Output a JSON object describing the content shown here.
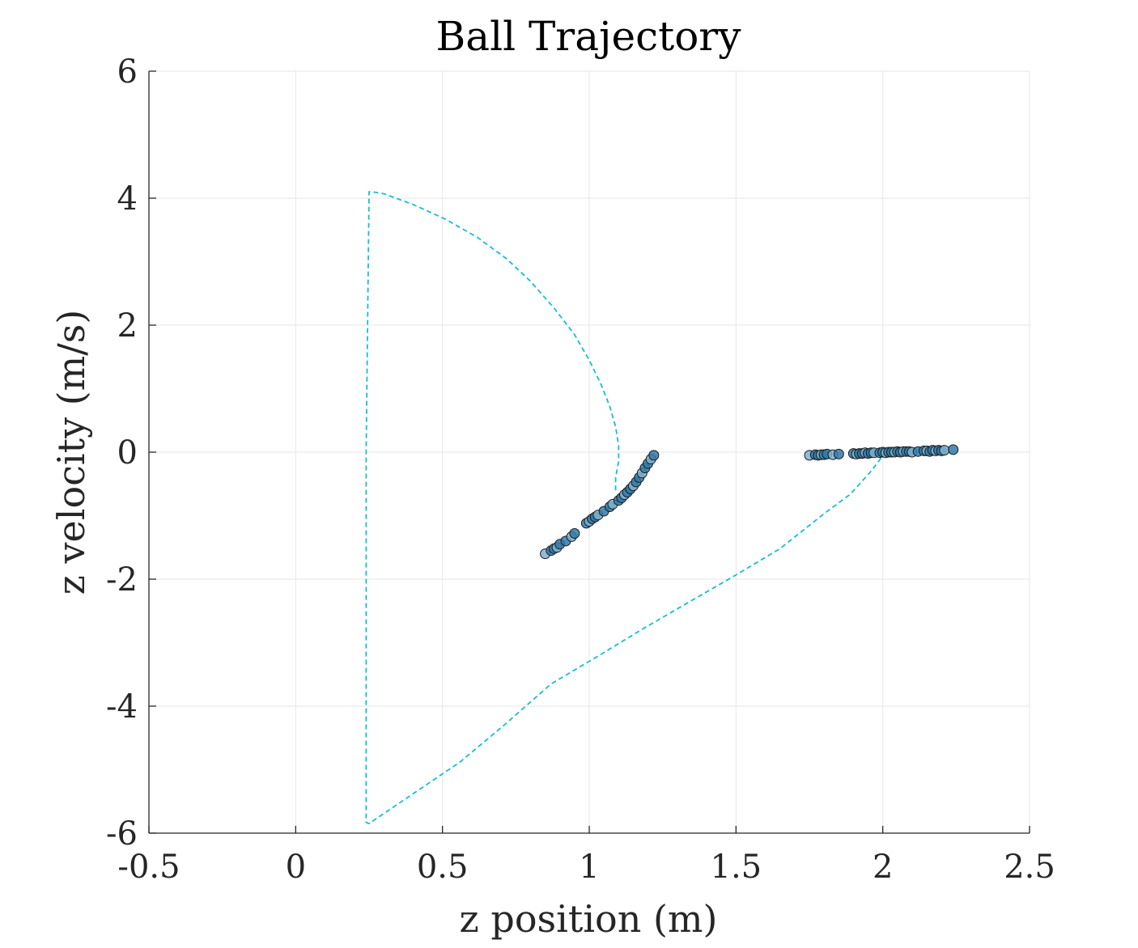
{
  "chart_data": {
    "type": "scatter",
    "title": "Ball Trajectory",
    "xlabel": "z position (m)",
    "ylabel": "z velocity (m/s)",
    "xlim": [
      -0.5,
      2.5
    ],
    "ylim": [
      -6,
      6
    ],
    "xticks": [
      -0.5,
      0,
      0.5,
      1,
      1.5,
      2,
      2.5
    ],
    "xtick_labels": [
      "-0.5",
      "0",
      "0.5",
      "1",
      "1.5",
      "2",
      "2.5"
    ],
    "yticks": [
      -6,
      -4,
      -2,
      0,
      2,
      4,
      6
    ],
    "ytick_labels": [
      "-6",
      "-4",
      "-2",
      "0",
      "2",
      "4",
      "6"
    ],
    "grid": true,
    "legend": "none",
    "colors": {
      "trajectory": "#17becf",
      "marker_fill": "#2f7aa8",
      "marker_fill_light": "#7fb1cf",
      "marker_edge": "#1a1a1a",
      "axis": "#262626",
      "grid": "#e6e6e6"
    },
    "series": [
      {
        "style": "dashed-line",
        "x": [
          1.09,
          1.09,
          1.1,
          1.1,
          1.09,
          1.07,
          1.04,
          1.0,
          0.95,
          0.88,
          0.8,
          0.72,
          0.62,
          0.51,
          0.4,
          0.3,
          0.26,
          0.25,
          0.24,
          0.24,
          0.25,
          0.4,
          0.56,
          0.71,
          0.87,
          1.02,
          1.18,
          1.34,
          1.49,
          1.65,
          1.8,
          1.89,
          1.96,
          1.99,
          2.0
        ],
        "y": [
          -0.6,
          -0.4,
          -0.15,
          0.1,
          0.4,
          0.72,
          1.07,
          1.45,
          1.85,
          2.27,
          2.69,
          3.04,
          3.38,
          3.67,
          3.9,
          4.07,
          4.1,
          4.1,
          0.0,
          -5.83,
          -5.85,
          -5.38,
          -4.88,
          -4.3,
          -3.65,
          -3.24,
          -2.79,
          -2.36,
          -1.96,
          -1.52,
          -0.97,
          -0.66,
          -0.3,
          -0.12,
          -0.05
        ]
      },
      {
        "style": "markers",
        "x": [
          0.85,
          0.87,
          0.88,
          0.89,
          0.9,
          0.92,
          0.94,
          0.95,
          0.99,
          1.0,
          1.01,
          1.02,
          1.03,
          1.05,
          1.07,
          1.08,
          1.1,
          1.11,
          1.12,
          1.13,
          1.14,
          1.15,
          1.16,
          1.17,
          1.18,
          1.19,
          1.2,
          1.21,
          1.22
        ],
        "y": [
          -1.6,
          -1.55,
          -1.52,
          -1.5,
          -1.45,
          -1.4,
          -1.33,
          -1.28,
          -1.12,
          -1.09,
          -1.05,
          -1.02,
          -0.99,
          -0.93,
          -0.86,
          -0.82,
          -0.76,
          -0.72,
          -0.67,
          -0.63,
          -0.58,
          -0.53,
          -0.47,
          -0.4,
          -0.33,
          -0.25,
          -0.18,
          -0.11,
          -0.05
        ]
      },
      {
        "style": "markers",
        "x": [
          1.75,
          1.77,
          1.78,
          1.79,
          1.8,
          1.81,
          1.83,
          1.85,
          1.9,
          1.91,
          1.92,
          1.93,
          1.94,
          1.95,
          1.96,
          1.97,
          1.99,
          2.0,
          2.01,
          2.02,
          2.03,
          2.04,
          2.05,
          2.06,
          2.07,
          2.08,
          2.09,
          2.1,
          2.12,
          2.14,
          2.15,
          2.16,
          2.17,
          2.18,
          2.19,
          2.2,
          2.21,
          2.24
        ],
        "y": [
          -0.05,
          -0.04,
          -0.05,
          -0.04,
          -0.04,
          -0.03,
          -0.04,
          -0.03,
          -0.02,
          -0.03,
          -0.02,
          -0.02,
          -0.01,
          -0.02,
          -0.01,
          -0.01,
          -0.01,
          0.0,
          -0.01,
          0.0,
          0.0,
          0.0,
          0.01,
          0.0,
          0.01,
          0.01,
          0.01,
          0.0,
          0.01,
          0.02,
          0.02,
          0.01,
          0.03,
          0.02,
          0.03,
          0.02,
          0.03,
          0.04
        ]
      }
    ]
  }
}
